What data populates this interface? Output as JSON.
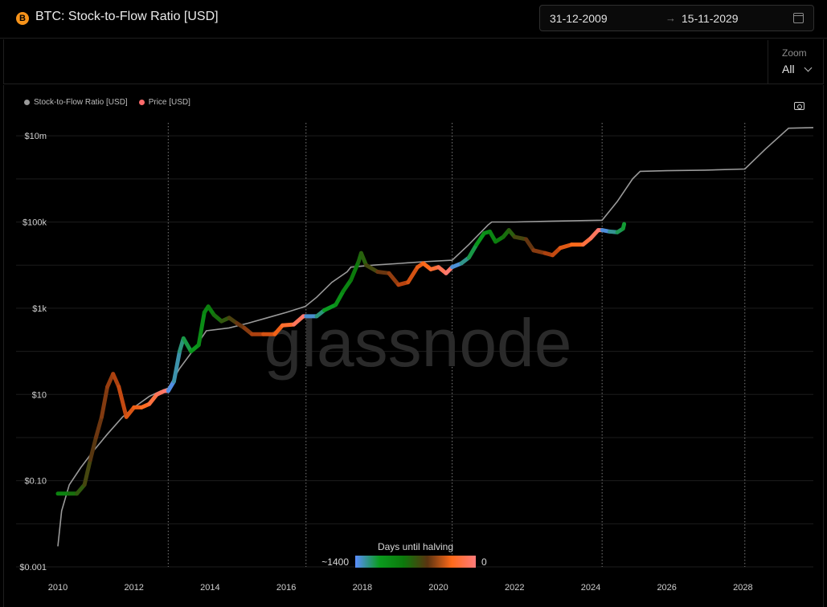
{
  "header": {
    "icon_glyph": "B",
    "title": "BTC: Stock-to-Flow Ratio [USD]",
    "date_start": "31-12-2009",
    "date_arrow": "→",
    "date_end": "15-11-2029"
  },
  "zoom": {
    "label": "Zoom",
    "value": "All"
  },
  "legend": [
    {
      "label": "Stock-to-Flow Ratio [USD]",
      "color": "#9a9a9a"
    },
    {
      "label": "Price [USD]",
      "color": "#ff6b6b"
    }
  ],
  "watermark": "glassnode",
  "colorbar": {
    "title": "Days until halving",
    "left_label": "~1400",
    "right_label": "0"
  },
  "chart_data": {
    "type": "line",
    "title": "BTC: Stock-to-Flow Ratio [USD]",
    "xlabel": "",
    "ylabel": "",
    "y_scale": "log",
    "xlim": [
      2010,
      2029.85
    ],
    "ylim": [
      0.001,
      20000000
    ],
    "x_ticks": [
      2010,
      2012,
      2014,
      2016,
      2018,
      2020,
      2022,
      2024,
      2026,
      2028
    ],
    "y_ticks": [
      {
        "value": 0.001,
        "label": "$0.001"
      },
      {
        "value": 0.1,
        "label": "$0.10"
      },
      {
        "value": 10,
        "label": "$10"
      },
      {
        "value": 1000,
        "label": "$1k"
      },
      {
        "value": 100000,
        "label": "$100k"
      },
      {
        "value": 10000000,
        "label": "$10m"
      }
    ],
    "halvings": [
      2012.9,
      2016.52,
      2020.36,
      2024.3,
      2028.05
    ],
    "grid": true,
    "legend_position": "top-left",
    "series": [
      {
        "name": "Stock-to-Flow Ratio [USD]",
        "color": "#9a9a9a",
        "points": [
          [
            2010.0,
            0.003
          ],
          [
            2010.1,
            0.02
          ],
          [
            2010.3,
            0.08
          ],
          [
            2010.6,
            0.2
          ],
          [
            2010.9,
            0.45
          ],
          [
            2011.3,
            1.2
          ],
          [
            2011.7,
            3
          ],
          [
            2012.0,
            5
          ],
          [
            2012.4,
            9
          ],
          [
            2012.7,
            12
          ],
          [
            2012.9,
            14
          ],
          [
            2013.2,
            40
          ],
          [
            2013.6,
            120
          ],
          [
            2013.9,
            300
          ],
          [
            2014.5,
            350
          ],
          [
            2015.0,
            450
          ],
          [
            2015.5,
            600
          ],
          [
            2016.0,
            800
          ],
          [
            2016.5,
            1100
          ],
          [
            2016.8,
            1800
          ],
          [
            2017.2,
            4000
          ],
          [
            2017.6,
            7000
          ],
          [
            2017.7,
            9000
          ],
          [
            2018.3,
            10000
          ],
          [
            2019.0,
            11000
          ],
          [
            2019.6,
            12000
          ],
          [
            2020.36,
            13000
          ],
          [
            2020.8,
            30000
          ],
          [
            2021.3,
            85000
          ],
          [
            2021.4,
            100000
          ],
          [
            2022.0,
            100000
          ],
          [
            2023.0,
            105000
          ],
          [
            2024.3,
            110000
          ],
          [
            2024.7,
            300000
          ],
          [
            2025.1,
            1000000
          ],
          [
            2025.3,
            1500000
          ],
          [
            2026.0,
            1550000
          ],
          [
            2027.0,
            1600000
          ],
          [
            2028.05,
            1700000
          ],
          [
            2028.6,
            5000000
          ],
          [
            2029.2,
            15000000
          ],
          [
            2029.85,
            15500000
          ]
        ]
      },
      {
        "name": "Price [USD]",
        "colorscale": [
          "#5b8cff",
          "#0a9b1e",
          "#0c7a0c",
          "#5a3310",
          "#b8430f",
          "#ff6a1a",
          "#ff7b7b"
        ],
        "colorscale_value": "days_until_halving",
        "points": [
          [
            2010.0,
            0.05
          ],
          [
            2010.3,
            0.05
          ],
          [
            2010.5,
            0.05
          ],
          [
            2010.7,
            0.08
          ],
          [
            2010.85,
            0.3
          ],
          [
            2011.0,
            1
          ],
          [
            2011.15,
            3
          ],
          [
            2011.3,
            15
          ],
          [
            2011.45,
            30
          ],
          [
            2011.6,
            15
          ],
          [
            2011.8,
            3
          ],
          [
            2012.0,
            5
          ],
          [
            2012.2,
            5
          ],
          [
            2012.4,
            6
          ],
          [
            2012.6,
            10
          ],
          [
            2012.8,
            12
          ],
          [
            2012.9,
            12
          ],
          [
            2013.05,
            20
          ],
          [
            2013.2,
            100
          ],
          [
            2013.3,
            200
          ],
          [
            2013.5,
            100
          ],
          [
            2013.7,
            140
          ],
          [
            2013.85,
            800
          ],
          [
            2013.95,
            1100
          ],
          [
            2014.1,
            700
          ],
          [
            2014.3,
            500
          ],
          [
            2014.5,
            600
          ],
          [
            2014.7,
            450
          ],
          [
            2014.9,
            350
          ],
          [
            2015.1,
            250
          ],
          [
            2015.4,
            250
          ],
          [
            2015.7,
            250
          ],
          [
            2015.9,
            400
          ],
          [
            2016.2,
            420
          ],
          [
            2016.45,
            650
          ],
          [
            2016.52,
            650
          ],
          [
            2016.8,
            650
          ],
          [
            2017.0,
            900
          ],
          [
            2017.3,
            1200
          ],
          [
            2017.5,
            2500
          ],
          [
            2017.7,
            4500
          ],
          [
            2017.9,
            12000
          ],
          [
            2017.97,
            19000
          ],
          [
            2018.1,
            10000
          ],
          [
            2018.4,
            7000
          ],
          [
            2018.7,
            6500
          ],
          [
            2018.95,
            3500
          ],
          [
            2019.2,
            4000
          ],
          [
            2019.45,
            9000
          ],
          [
            2019.6,
            11000
          ],
          [
            2019.8,
            8000
          ],
          [
            2020.0,
            9000
          ],
          [
            2020.2,
            6500
          ],
          [
            2020.36,
            9000
          ],
          [
            2020.6,
            11000
          ],
          [
            2020.8,
            15000
          ],
          [
            2021.0,
            30000
          ],
          [
            2021.2,
            55000
          ],
          [
            2021.35,
            60000
          ],
          [
            2021.5,
            35000
          ],
          [
            2021.7,
            45000
          ],
          [
            2021.85,
            65000
          ],
          [
            2022.0,
            45000
          ],
          [
            2022.3,
            40000
          ],
          [
            2022.5,
            22000
          ],
          [
            2022.8,
            19000
          ],
          [
            2023.0,
            17000
          ],
          [
            2023.2,
            25000
          ],
          [
            2023.5,
            30000
          ],
          [
            2023.8,
            30000
          ],
          [
            2024.0,
            42000
          ],
          [
            2024.2,
            65000
          ],
          [
            2024.3,
            65000
          ],
          [
            2024.5,
            60000
          ],
          [
            2024.7,
            58000
          ],
          [
            2024.85,
            70000
          ],
          [
            2024.88,
            90000
          ]
        ]
      }
    ]
  }
}
